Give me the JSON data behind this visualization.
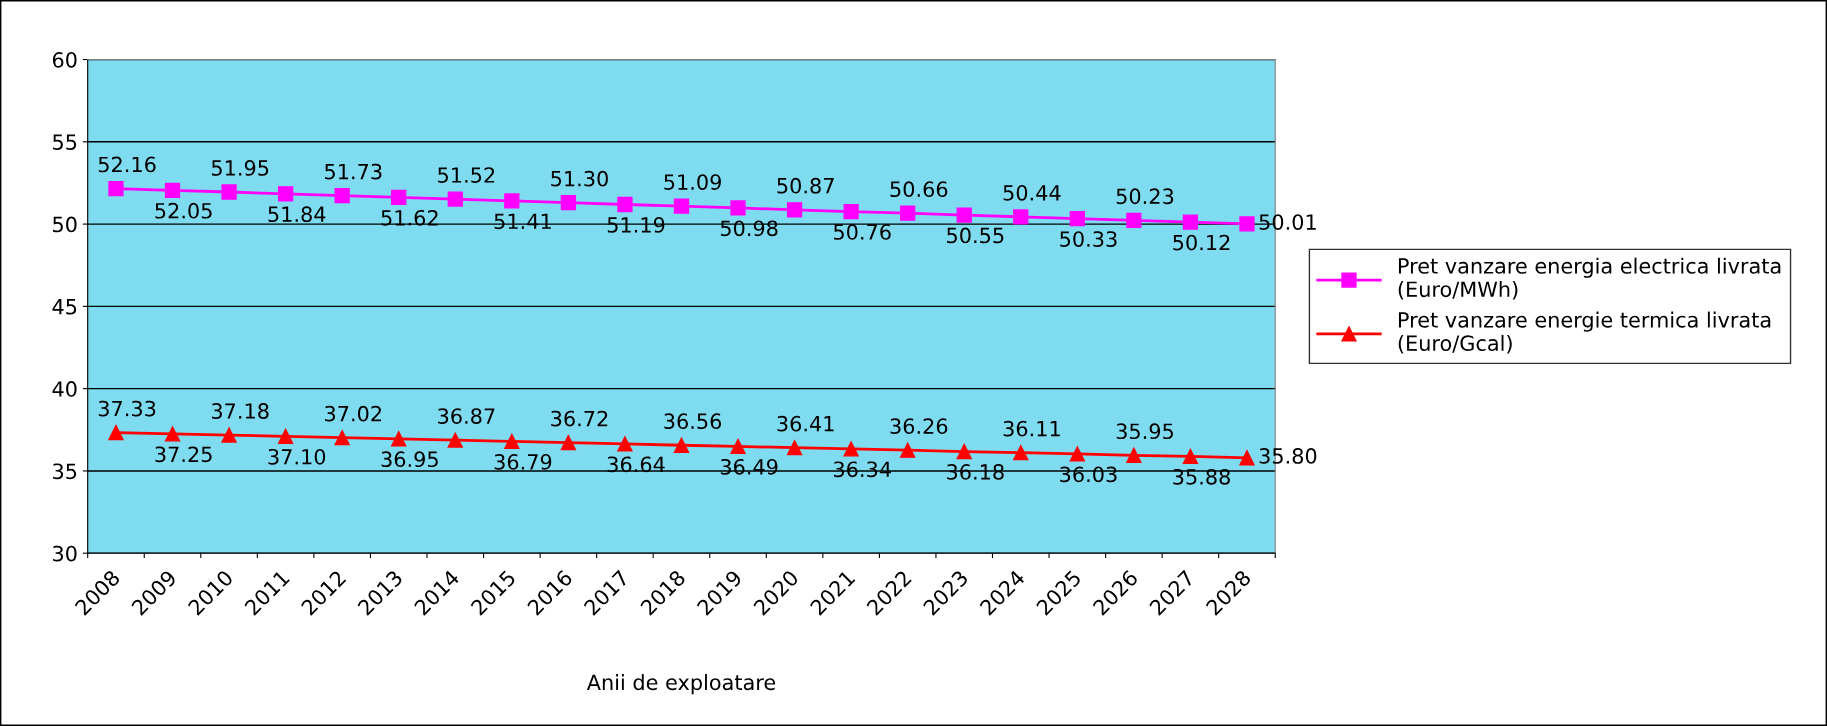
{
  "chart_data": {
    "type": "line",
    "xlabel": "Anii de exploatare",
    "categories": [
      "2008",
      "2009",
      "2010",
      "2011",
      "2012",
      "2013",
      "2014",
      "2015",
      "2016",
      "2017",
      "2018",
      "2019",
      "2020",
      "2021",
      "2022",
      "2023",
      "2024",
      "2025",
      "2026",
      "2027",
      "2028"
    ],
    "series": [
      {
        "name": "Pret vanzare energia electrica livrata\n(Euro/MWh)",
        "color": "#ff00ff",
        "marker": "square",
        "values": [
          52.16,
          52.05,
          51.95,
          51.84,
          51.73,
          51.62,
          51.52,
          51.41,
          51.3,
          51.19,
          51.09,
          50.98,
          50.87,
          50.76,
          50.66,
          50.55,
          50.44,
          50.33,
          50.23,
          50.12,
          50.01
        ],
        "value_labels": [
          "52.16",
          "52.05",
          "51.95",
          "51.84",
          "51.73",
          "51.62",
          "51.52",
          "51.41",
          "51.30",
          "51.19",
          "51.09",
          "50.98",
          "50.87",
          "50.76",
          "50.66",
          "50.55",
          "50.44",
          "50.33",
          "50.23",
          "50.12",
          "50.01"
        ]
      },
      {
        "name": "Pret vanzare energie termica livrata\n(Euro/Gcal)",
        "color": "#ff0000",
        "marker": "triangle",
        "values": [
          37.33,
          37.25,
          37.18,
          37.1,
          37.02,
          36.95,
          36.87,
          36.79,
          36.72,
          36.64,
          36.56,
          36.49,
          36.41,
          36.34,
          36.26,
          36.18,
          36.11,
          36.03,
          35.95,
          35.88,
          35.8
        ],
        "value_labels": [
          "37.33",
          "37.25",
          "37.18",
          "37.10",
          "37.02",
          "36.95",
          "36.87",
          "36.79",
          "36.72",
          "36.64",
          "36.56",
          "36.49",
          "36.41",
          "36.34",
          "36.26",
          "36.18",
          "36.11",
          "36.03",
          "35.95",
          "35.88",
          "35.80"
        ]
      }
    ],
    "ylim": [
      30,
      60
    ],
    "yticks": [
      30,
      35,
      40,
      45,
      50,
      55,
      60
    ],
    "grid": "y",
    "legend": "right"
  }
}
